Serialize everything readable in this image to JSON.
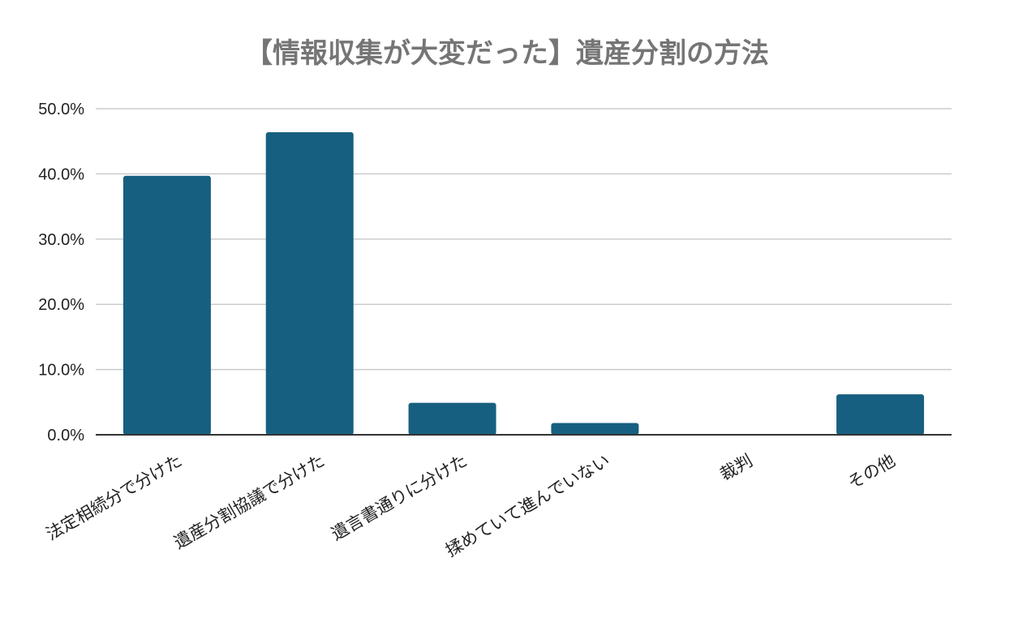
{
  "chart_data": {
    "type": "bar",
    "title": "【情報収集が大変だった】遺産分割の方法",
    "xlabel": "",
    "ylabel": "",
    "categories": [
      "法定相続分で分けた",
      "遺産分割協議で分けた",
      "遺言書通りに分けた",
      "揉めていて進んでいない",
      "裁判",
      "その他"
    ],
    "values": [
      39.7,
      46.4,
      4.9,
      1.8,
      0.1,
      6.2
    ],
    "ylim": [
      0,
      50
    ],
    "yticks": [
      "0.0%",
      "10.0%",
      "20.0%",
      "30.0%",
      "40.0%",
      "50.0%"
    ],
    "grid": true,
    "legend": "none",
    "colors": {
      "bar": "#175f80",
      "grid": "#cccccc",
      "axis": "#333333"
    }
  }
}
